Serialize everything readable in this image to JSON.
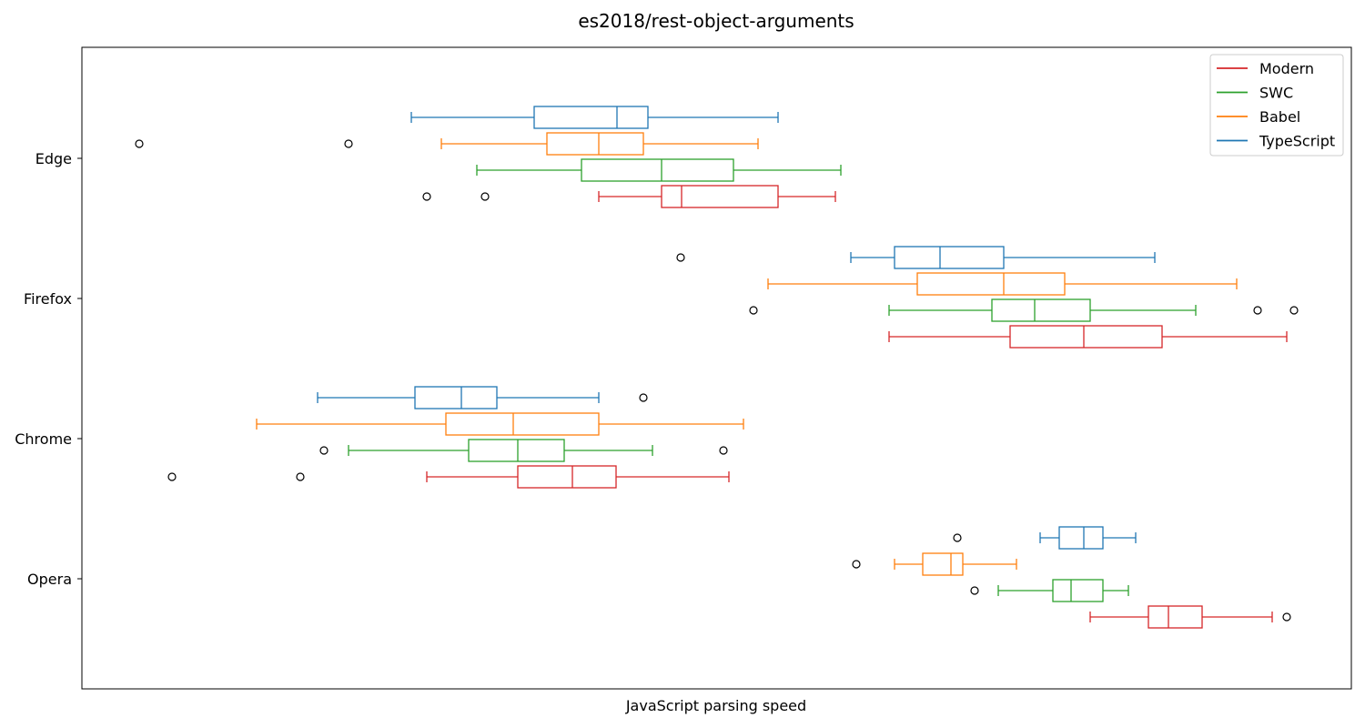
{
  "chart_data": {
    "type": "box",
    "orientation": "horizontal",
    "title": "es2018/rest-object-arguments",
    "xlabel": "JavaScript parsing speed",
    "ylabel": "",
    "x_tick_labels_shown": false,
    "grid": false,
    "legend_position": "top-right",
    "categories": [
      "Edge",
      "Firefox",
      "Chrome",
      "Opera"
    ],
    "series": [
      {
        "name": "Modern",
        "color": "#d62728",
        "boxes": [
          {
            "category": "Edge",
            "whisker_low": 658,
            "q1": 727,
            "median": 749,
            "q3": 855,
            "whisker_high": 918,
            "outliers": [
              469,
              533
            ]
          },
          {
            "category": "Firefox",
            "whisker_low": 977,
            "q1": 1110,
            "median": 1191,
            "q3": 1277,
            "whisker_high": 1414,
            "outliers": []
          },
          {
            "category": "Chrome",
            "whisker_low": 469,
            "q1": 569,
            "median": 629,
            "q3": 677,
            "whisker_high": 801,
            "outliers": [
              189,
              330
            ]
          },
          {
            "category": "Opera",
            "whisker_low": 1198,
            "q1": 1262,
            "median": 1284,
            "q3": 1321,
            "whisker_high": 1398,
            "outliers": [
              1414
            ]
          }
        ]
      },
      {
        "name": "SWC",
        "color": "#2ca02c",
        "boxes": [
          {
            "category": "Edge",
            "whisker_low": 524,
            "q1": 639,
            "median": 727,
            "q3": 806,
            "whisker_high": 924,
            "outliers": []
          },
          {
            "category": "Firefox",
            "whisker_low": 977,
            "q1": 1090,
            "median": 1137,
            "q3": 1198,
            "whisker_high": 1314,
            "outliers": [
              828,
              1382,
              1422
            ]
          },
          {
            "category": "Chrome",
            "whisker_low": 383,
            "q1": 515,
            "median": 569,
            "q3": 620,
            "whisker_high": 717,
            "outliers": [
              356,
              795
            ]
          },
          {
            "category": "Opera",
            "whisker_low": 1097,
            "q1": 1157,
            "median": 1177,
            "q3": 1212,
            "whisker_high": 1240,
            "outliers": [
              1071
            ]
          }
        ]
      },
      {
        "name": "Babel",
        "color": "#ff7f0e",
        "boxes": [
          {
            "category": "Edge",
            "whisker_low": 485,
            "q1": 601,
            "median": 658,
            "q3": 707,
            "whisker_high": 833,
            "outliers": [
              153,
              383
            ]
          },
          {
            "category": "Firefox",
            "whisker_low": 844,
            "q1": 1008,
            "median": 1103,
            "q3": 1170,
            "whisker_high": 1359,
            "outliers": []
          },
          {
            "category": "Chrome",
            "whisker_low": 282,
            "q1": 490,
            "median": 564,
            "q3": 658,
            "whisker_high": 817,
            "outliers": []
          },
          {
            "category": "Opera",
            "whisker_low": 983,
            "q1": 1014,
            "median": 1045,
            "q3": 1058,
            "whisker_high": 1117,
            "outliers": [
              941
            ]
          }
        ]
      },
      {
        "name": "TypeScript",
        "color": "#1f77b4",
        "boxes": [
          {
            "category": "Edge",
            "whisker_low": 452,
            "q1": 587,
            "median": 678,
            "q3": 712,
            "whisker_high": 855,
            "outliers": []
          },
          {
            "category": "Firefox",
            "whisker_low": 935,
            "q1": 983,
            "median": 1033,
            "q3": 1103,
            "whisker_high": 1269,
            "outliers": [
              748
            ]
          },
          {
            "category": "Chrome",
            "whisker_low": 349,
            "q1": 456,
            "median": 507,
            "q3": 546,
            "whisker_high": 658,
            "outliers": [
              707
            ]
          },
          {
            "category": "Opera",
            "whisker_low": 1143,
            "q1": 1164,
            "median": 1191,
            "q3": 1212,
            "whisker_high": 1248,
            "outliers": [
              1052
            ]
          }
        ]
      }
    ],
    "legend": [
      {
        "label": "Modern",
        "color": "#d62728"
      },
      {
        "label": "SWC",
        "color": "#2ca02c"
      },
      {
        "label": "Babel",
        "color": "#ff7f0e"
      },
      {
        "label": "TypeScript",
        "color": "#1f77b4"
      }
    ]
  }
}
